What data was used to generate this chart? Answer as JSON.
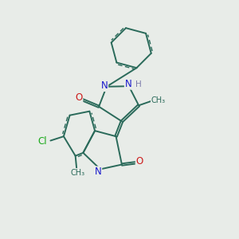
{
  "background_color": "#e8ece8",
  "bond_color": "#2a6a5a",
  "atom_colors": {
    "N": "#1a1acc",
    "O": "#cc1a1a",
    "Cl": "#1aaa1a",
    "H": "#7a7aaa",
    "C": "#2a6a5a"
  }
}
